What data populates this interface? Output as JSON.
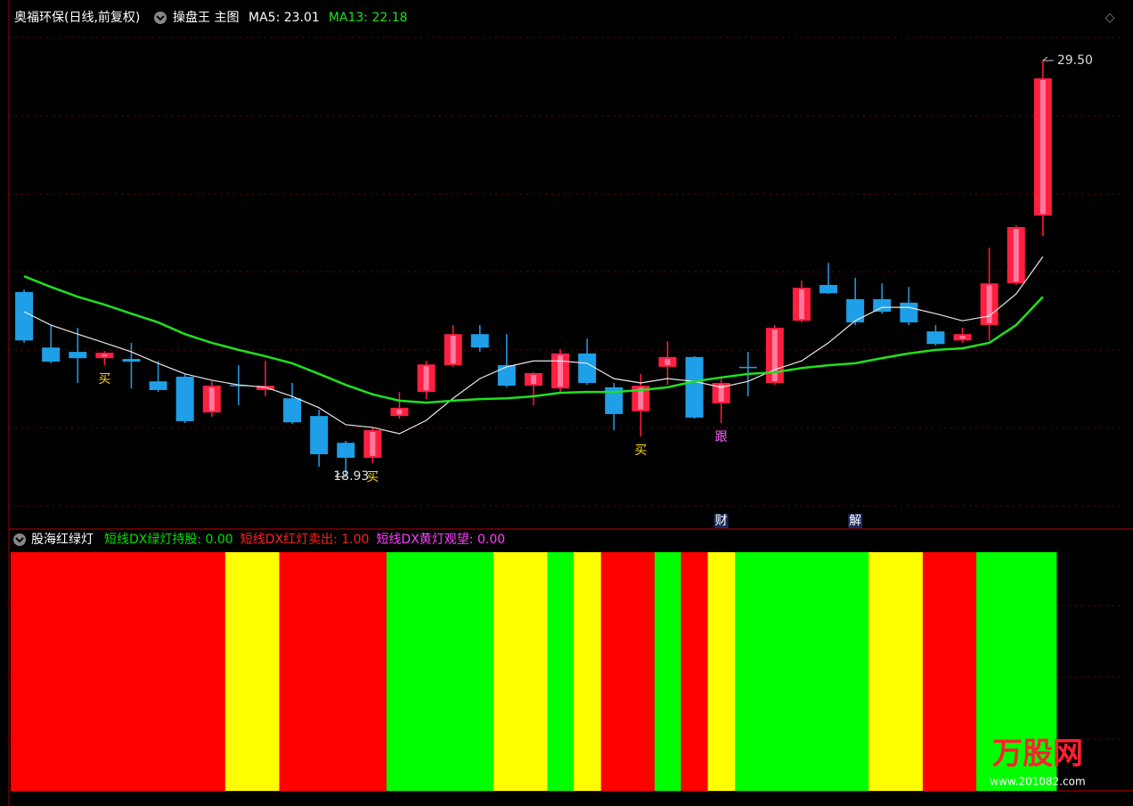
{
  "chart_data": [
    {
      "type": "candlestick",
      "title": "奥福环保(日线,前复权)",
      "subtitle": "操盘王 主图",
      "legend": [
        {
          "text": "MA5: 23.01",
          "color": "#ffffff"
        },
        {
          "text": "MA13: 22.18",
          "color": "#20e020"
        }
      ],
      "open": [
        23.62,
        22.21,
        22.1,
        21.94,
        21.92,
        21.35,
        21.47,
        20.56,
        21.26,
        21.13,
        20.92,
        20.47,
        19.79,
        19.41,
        20.47,
        21.08,
        21.76,
        22.55,
        21.76,
        21.24,
        21.17,
        22.06,
        21.2,
        20.59,
        21.72,
        21.97,
        20.79,
        21.72,
        21.31,
        22.89,
        23.8,
        23.44,
        23.44,
        23.35,
        22.62,
        22.39,
        22.78,
        23.84,
        25.56
      ],
      "close": [
        22.39,
        21.85,
        21.94,
        22.08,
        21.85,
        21.13,
        20.34,
        21.24,
        21.24,
        21.24,
        20.31,
        19.5,
        19.41,
        20.11,
        20.68,
        21.78,
        22.55,
        22.21,
        21.24,
        21.56,
        22.06,
        21.31,
        20.52,
        21.24,
        21.97,
        20.43,
        21.31,
        21.69,
        22.71,
        23.73,
        23.59,
        22.85,
        23.12,
        22.85,
        22.3,
        22.55,
        23.84,
        25.27,
        29.05
      ],
      "high": [
        23.68,
        22.78,
        22.71,
        22.12,
        22.33,
        21.87,
        21.54,
        21.35,
        21.76,
        21.87,
        21.31,
        20.63,
        19.84,
        20.18,
        21.08,
        21.87,
        22.78,
        22.78,
        22.55,
        21.58,
        22.17,
        22.44,
        21.31,
        21.54,
        22.37,
        21.99,
        21.42,
        22.1,
        22.78,
        23.91,
        24.36,
        23.98,
        23.84,
        23.75,
        22.78,
        22.71,
        24.75,
        25.31,
        29.5
      ],
      "low": [
        22.33,
        21.81,
        21.31,
        21.76,
        21.17,
        21.08,
        20.29,
        20.45,
        20.74,
        20.97,
        20.27,
        19.18,
        18.93,
        19.27,
        20.4,
        20.9,
        21.72,
        22.1,
        21.2,
        20.74,
        21.08,
        21.26,
        20.11,
        19.95,
        21.26,
        20.4,
        20.29,
        20.97,
        21.26,
        22.85,
        23.57,
        22.78,
        23.07,
        22.78,
        22.26,
        22.33,
        22.39,
        23.8,
        25.04
      ],
      "up_color": "#ff1f3f",
      "down_color": "#1e9fe8",
      "series": [
        {
          "color": "#e8e8e8",
          "values": [
            23.12,
            22.78,
            22.55,
            22.33,
            22.1,
            21.81,
            21.54,
            21.38,
            21.26,
            21.2,
            20.97,
            20.68,
            20.25,
            20.18,
            20.02,
            20.36,
            20.92,
            21.42,
            21.72,
            21.87,
            21.87,
            21.81,
            21.42,
            21.31,
            21.42,
            21.35,
            21.2,
            21.35,
            21.65,
            21.87,
            22.33,
            22.89,
            23.23,
            23.23,
            23.07,
            22.89,
            23.01,
            23.57,
            24.52
          ]
        },
        {
          "color": "#20e020",
          "values": [
            24.02,
            23.75,
            23.5,
            23.3,
            23.07,
            22.85,
            22.55,
            22.33,
            22.15,
            21.99,
            21.81,
            21.54,
            21.26,
            21.02,
            20.86,
            20.81,
            20.86,
            20.9,
            20.92,
            20.97,
            21.06,
            21.08,
            21.08,
            21.13,
            21.2,
            21.35,
            21.45,
            21.54,
            21.58,
            21.69,
            21.76,
            21.81,
            21.94,
            22.06,
            22.15,
            22.19,
            22.33,
            22.78,
            23.5
          ]
        }
      ],
      "high_label": {
        "value": 29.5,
        "label": "29.50"
      },
      "low_label": {
        "value": 18.93,
        "label": "18.93"
      },
      "below_labels": [
        null,
        null,
        null,
        {
          "text": "买",
          "color": "#ffd21a"
        },
        null,
        null,
        null,
        null,
        null,
        null,
        null,
        null,
        null,
        {
          "text": "买",
          "color": "#ffd21a"
        },
        null,
        null,
        null,
        null,
        null,
        null,
        null,
        null,
        null,
        {
          "text": "买",
          "color": "#ffd21a"
        },
        null,
        null,
        {
          "text": "跟",
          "color": "#ff60ff"
        },
        null,
        null,
        null,
        null,
        null,
        null,
        null,
        null,
        null,
        null,
        null,
        null
      ],
      "event_labels": [
        null,
        null,
        null,
        null,
        null,
        null,
        null,
        null,
        null,
        null,
        null,
        null,
        null,
        null,
        null,
        null,
        null,
        null,
        null,
        null,
        null,
        null,
        null,
        null,
        null,
        null,
        "财",
        null,
        null,
        null,
        null,
        "解",
        null,
        null,
        null,
        null,
        null,
        null,
        null
      ],
      "ylim": [
        17.69,
        30.36
      ]
    },
    {
      "type": "bar",
      "title": "股海红绿灯",
      "series": [
        {
          "label": "短线DX绿灯持股: 0.00",
          "label_color": "#00e000",
          "color": "#00ff00",
          "values": [
            0,
            0,
            0,
            0,
            0,
            0,
            0,
            0,
            0,
            0,
            0,
            0,
            0,
            0,
            1,
            1,
            1,
            1,
            0,
            0,
            1,
            0,
            0,
            0,
            1,
            0,
            0,
            1,
            1,
            1,
            1,
            1,
            0,
            0,
            0,
            0,
            1,
            1,
            1
          ]
        },
        {
          "label": "短线DX红灯卖出: 1.00",
          "label_color": "#ff2020",
          "color": "#ff0000",
          "values": [
            1,
            1,
            1,
            1,
            1,
            1,
            1,
            1,
            0,
            0,
            1,
            1,
            1,
            1,
            0,
            0,
            0,
            0,
            0,
            0,
            0,
            0,
            1,
            1,
            0,
            1,
            0,
            0,
            0,
            0,
            0,
            0,
            0,
            0,
            1,
            1,
            0,
            0,
            0
          ]
        },
        {
          "label": "短线DX黄灯观望: 0.00",
          "label_color": "#ff40ff",
          "color": "#ffff00",
          "values": [
            0,
            0,
            0,
            0,
            0,
            0,
            0,
            0,
            1,
            1,
            0,
            0,
            0,
            0,
            0,
            0,
            0,
            0,
            1,
            1,
            0,
            1,
            0,
            0,
            0,
            0,
            1,
            0,
            0,
            0,
            0,
            0,
            1,
            1,
            0,
            0,
            0,
            0,
            0
          ]
        }
      ],
      "ylim": [
        0,
        1
      ]
    }
  ],
  "logo": {
    "name": "万股网",
    "url": "www.201082.com"
  }
}
